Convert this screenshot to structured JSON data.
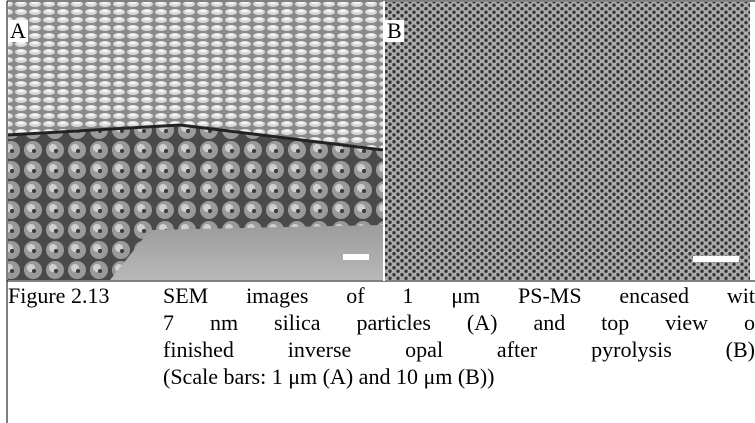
{
  "figure": {
    "panels": [
      {
        "label": "A"
      },
      {
        "label": "B"
      }
    ],
    "caption": {
      "number": "Figure 2.13",
      "lines": [
        "SEM images of 1 μm PS-MS encased wit",
        "7 nm silica particles (A) and top view o",
        "finished inverse opal after pyrolysis (B)",
        "(Scale bars: 1 μm (A) and 10 μm (B))"
      ]
    }
  }
}
